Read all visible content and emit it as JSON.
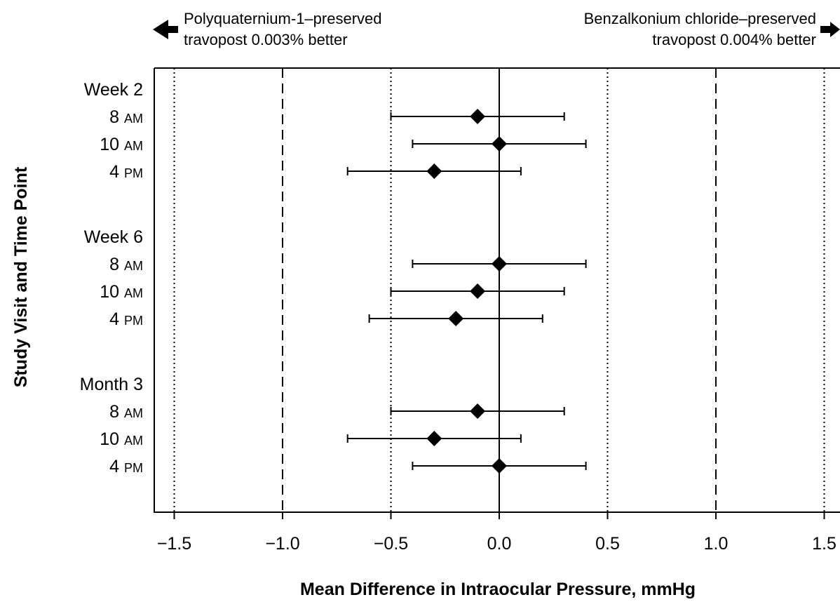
{
  "chart_data": {
    "type": "scatter",
    "xlabel": "Mean Difference in Intraocular Pressure, mmHg",
    "ylabel": "Study Visit and Time Point",
    "xlim": [
      -1.6,
      1.6
    ],
    "x_ticks": [
      -1.5,
      -1.0,
      -0.5,
      0.0,
      0.5,
      1.0,
      1.5
    ],
    "x_tick_labels": [
      "−1.5",
      "−1.0",
      "−0.5",
      "0.0",
      "0.5",
      "1.0",
      "1.5"
    ],
    "reference_lines": [
      {
        "x": -1.5,
        "style": "dotted"
      },
      {
        "x": -1.0,
        "style": "dashed"
      },
      {
        "x": -0.5,
        "style": "dotted"
      },
      {
        "x": 0.0,
        "style": "solid"
      },
      {
        "x": 0.5,
        "style": "dotted"
      },
      {
        "x": 1.0,
        "style": "dashed"
      },
      {
        "x": 1.5,
        "style": "dotted"
      }
    ],
    "annotations": {
      "left": {
        "line1": "Polyquaternium-1–preserved",
        "line2": "travopost 0.003% better",
        "arrow": "left"
      },
      "right": {
        "line1": "Benzalkonium chloride–preserved",
        "line2": "travopost 0.004% better",
        "arrow": "right"
      }
    },
    "groups": [
      {
        "label": "Week 2",
        "rows": [
          {
            "time": "8",
            "suffix": "AM",
            "mean": -0.1,
            "lower": -0.5,
            "upper": 0.3
          },
          {
            "time": "10",
            "suffix": "AM",
            "mean": 0.0,
            "lower": -0.4,
            "upper": 0.4
          },
          {
            "time": "4",
            "suffix": "PM",
            "mean": -0.3,
            "lower": -0.7,
            "upper": 0.1
          }
        ]
      },
      {
        "label": "Week 6",
        "rows": [
          {
            "time": "8",
            "suffix": "AM",
            "mean": 0.0,
            "lower": -0.4,
            "upper": 0.4
          },
          {
            "time": "10",
            "suffix": "AM",
            "mean": -0.1,
            "lower": -0.5,
            "upper": 0.3
          },
          {
            "time": "4",
            "suffix": "PM",
            "mean": -0.2,
            "lower": -0.6,
            "upper": 0.2
          }
        ]
      },
      {
        "label": "Month 3",
        "rows": [
          {
            "time": "8",
            "suffix": "AM",
            "mean": -0.1,
            "lower": -0.5,
            "upper": 0.3
          },
          {
            "time": "10",
            "suffix": "AM",
            "mean": -0.3,
            "lower": -0.7,
            "upper": 0.1
          },
          {
            "time": "4",
            "suffix": "PM",
            "mean": 0.0,
            "lower": -0.4,
            "upper": 0.4
          }
        ]
      }
    ],
    "colors": {
      "marker": "#000000",
      "line": "#000000",
      "background": "#ffffff"
    }
  }
}
